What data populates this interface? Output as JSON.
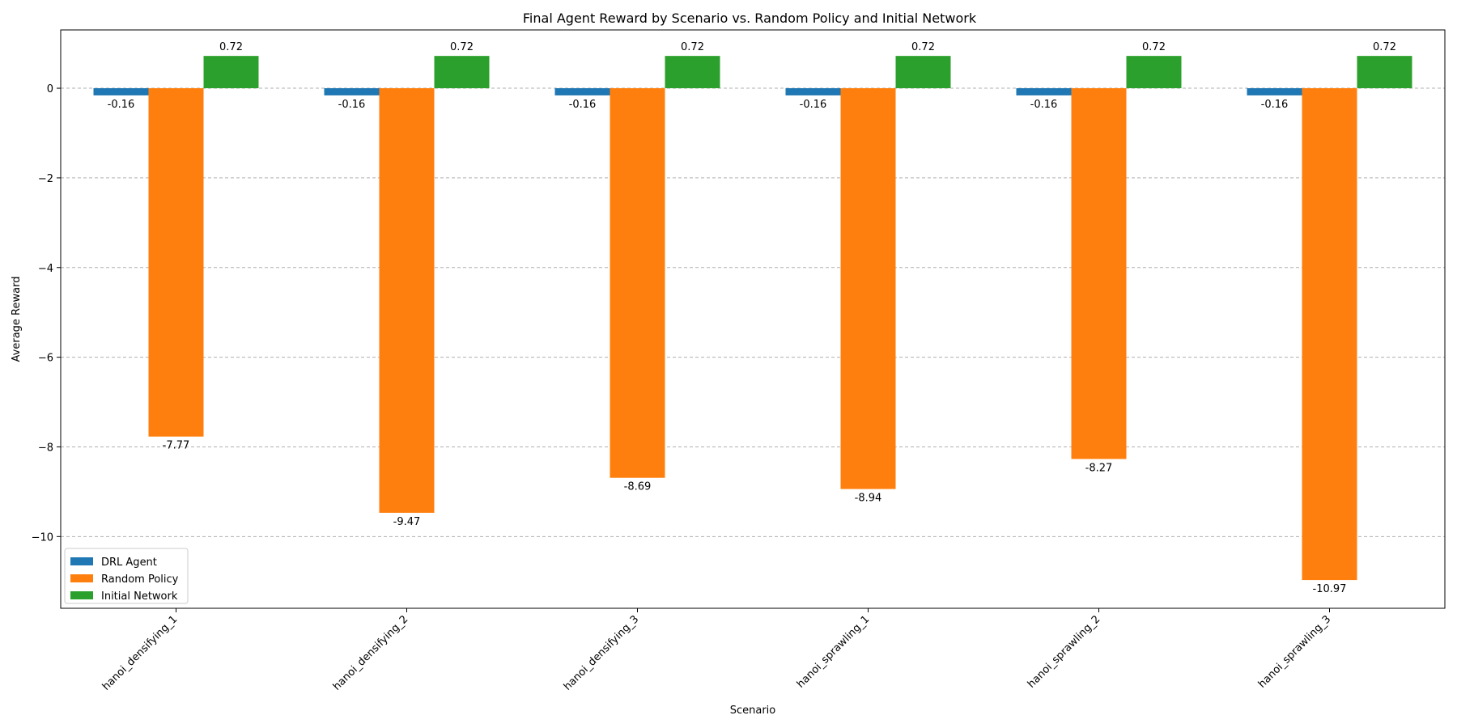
{
  "chart_data": {
    "type": "bar",
    "title": "Final Agent Reward by Scenario vs. Random Policy and Initial Network",
    "xlabel": "Scenario",
    "ylabel": "Average Reward",
    "categories": [
      "hanoi_densifying_1",
      "hanoi_densifying_2",
      "hanoi_densifying_3",
      "hanoi_sprawling_1",
      "hanoi_sprawling_2",
      "hanoi_sprawling_3"
    ],
    "series": [
      {
        "name": "DRL Agent",
        "color": "#1f77b4",
        "values": [
          -0.16,
          -0.16,
          -0.16,
          -0.16,
          -0.16,
          -0.16
        ]
      },
      {
        "name": "Random Policy",
        "color": "#ff7f0e",
        "values": [
          -7.77,
          -9.47,
          -8.69,
          -8.94,
          -8.27,
          -10.97
        ]
      },
      {
        "name": "Initial Network",
        "color": "#2ca02c",
        "values": [
          0.72,
          0.72,
          0.72,
          0.72,
          0.72,
          0.72
        ]
      }
    ],
    "ylim": [
      -11.6,
      1.3
    ],
    "yticks": [
      0,
      -2,
      -4,
      -6,
      -8,
      -10
    ],
    "grid": "y-dashed",
    "legend_position": "lower-left"
  }
}
